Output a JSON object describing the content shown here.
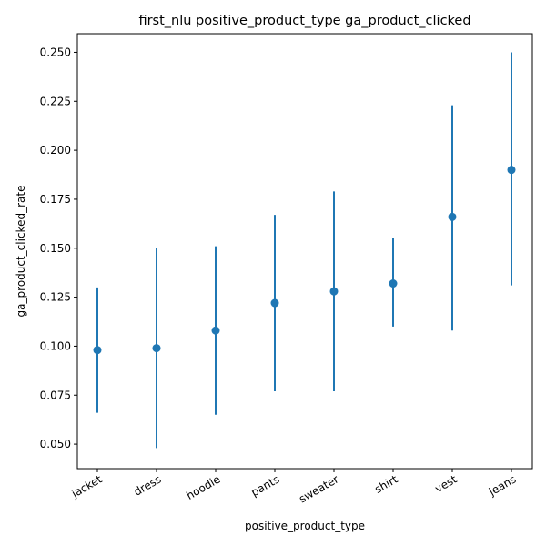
{
  "chart_data": {
    "type": "scatter",
    "title": "first_nlu positive_product_type ga_product_clicked",
    "xlabel": "positive_product_type",
    "ylabel": "ga_product_clicked_rate",
    "categories": [
      "jacket",
      "dress",
      "hoodie",
      "pants",
      "sweater",
      "shirt",
      "vest",
      "jeans"
    ],
    "values": [
      0.098,
      0.099,
      0.108,
      0.122,
      0.128,
      0.132,
      0.166,
      0.19
    ],
    "lower": [
      0.066,
      0.048,
      0.065,
      0.077,
      0.077,
      0.11,
      0.108,
      0.131
    ],
    "upper": [
      0.13,
      0.15,
      0.151,
      0.167,
      0.179,
      0.155,
      0.223,
      0.25
    ],
    "ylim": [
      0.0375,
      0.2595
    ],
    "yticks": [
      "0.050",
      "0.075",
      "0.100",
      "0.125",
      "0.150",
      "0.175",
      "0.200",
      "0.225",
      "0.250"
    ],
    "color": "#1f77b4",
    "grid": false
  }
}
